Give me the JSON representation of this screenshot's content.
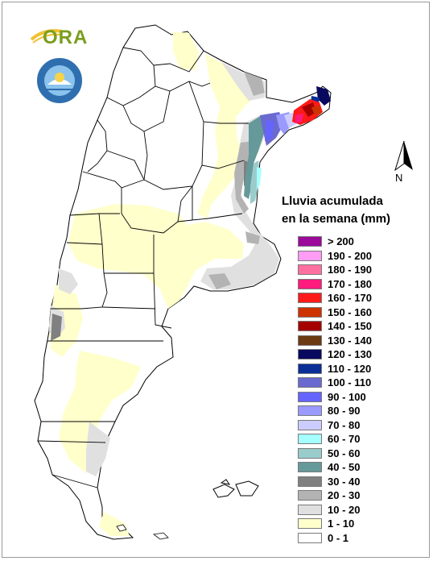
{
  "logo": {
    "ora_text": "ORA",
    "smn_name": "smn-emblem"
  },
  "north": {
    "letter": "N",
    "icon": "north-arrow-icon"
  },
  "legend": {
    "title_line1": "Lluvia acumulada",
    "title_line2": "en la semana (mm)",
    "classes": [
      {
        "label": "> 200",
        "color": "#9b0a9b"
      },
      {
        "label": "190 - 200",
        "color": "#ff9cf4"
      },
      {
        "label": "180 - 190",
        "color": "#ff6f9f"
      },
      {
        "label": "170 - 180",
        "color": "#ff1a7d"
      },
      {
        "label": "160 - 170",
        "color": "#ff1a1a"
      },
      {
        "label": "150 - 160",
        "color": "#cc3300"
      },
      {
        "label": "140 - 150",
        "color": "#a50000"
      },
      {
        "label": "130 - 140",
        "color": "#6b3a12"
      },
      {
        "label": "120 - 130",
        "color": "#08085e"
      },
      {
        "label": "110 - 120",
        "color": "#0a2d96"
      },
      {
        "label": "100 - 110",
        "color": "#6a6ad0"
      },
      {
        "label": "90 - 100",
        "color": "#6464ff"
      },
      {
        "label": "80 - 90",
        "color": "#9a9aff"
      },
      {
        "label": "70 - 80",
        "color": "#ccccff"
      },
      {
        "label": "60 - 70",
        "color": "#a6ffff"
      },
      {
        "label": "50 - 60",
        "color": "#9acccc"
      },
      {
        "label": "40 - 50",
        "color": "#669999"
      },
      {
        "label": "30 - 40",
        "color": "#808080"
      },
      {
        "label": "20 - 30",
        "color": "#b3b3b3"
      },
      {
        "label": "10 - 20",
        "color": "#e0e0e0"
      },
      {
        "label": "1 - 10",
        "color": "#ffffcc"
      },
      {
        "label": "0 - 1",
        "color": "#ffffff"
      }
    ]
  },
  "map": {
    "land_color": "#ffffff",
    "border_color": "#000000"
  }
}
